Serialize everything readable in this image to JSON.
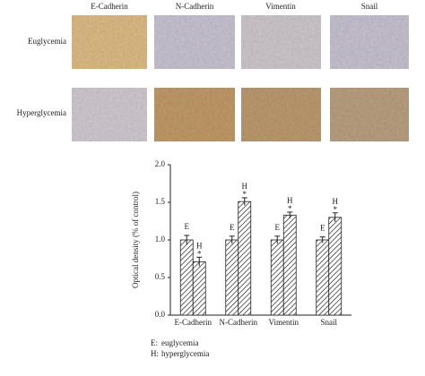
{
  "panels": {
    "columns": [
      "E-Cadherin",
      "N-Cadherin",
      "Vimentin",
      "Snail"
    ],
    "rows": [
      "Euglycemia",
      "Hyperglycemia"
    ]
  },
  "chart_data": {
    "type": "bar",
    "y_label": "Optical density (% of control)",
    "categories": [
      "E-Cadherin",
      "N-Cadherin",
      "Vimentin",
      "Snail"
    ],
    "series": [
      {
        "name": "euglycemia",
        "label": "E",
        "legend_key": "E:",
        "color": "#d9303a",
        "values": [
          1.0,
          1.0,
          1.0,
          1.0
        ],
        "errors": [
          0.06,
          0.05,
          0.05,
          0.04
        ]
      },
      {
        "name": "hyperglycemia",
        "label": "H",
        "legend_key": "H:",
        "color": "#d9303a",
        "values": [
          0.71,
          1.51,
          1.33,
          1.3
        ],
        "errors": [
          0.06,
          0.05,
          0.04,
          0.06
        ],
        "significance": [
          "*",
          "*",
          "*",
          "*"
        ]
      }
    ],
    "ylim": [
      0,
      2.0
    ],
    "yticks": [
      {
        "value": 0,
        "label": "0.0"
      },
      {
        "value": 0.5,
        "label": "0.5"
      },
      {
        "value": 1.0,
        "label": "1.0"
      },
      {
        "value": 1.5,
        "label": "1.5"
      },
      {
        "value": 2.0,
        "label": "2.0"
      }
    ],
    "hatch": true
  }
}
